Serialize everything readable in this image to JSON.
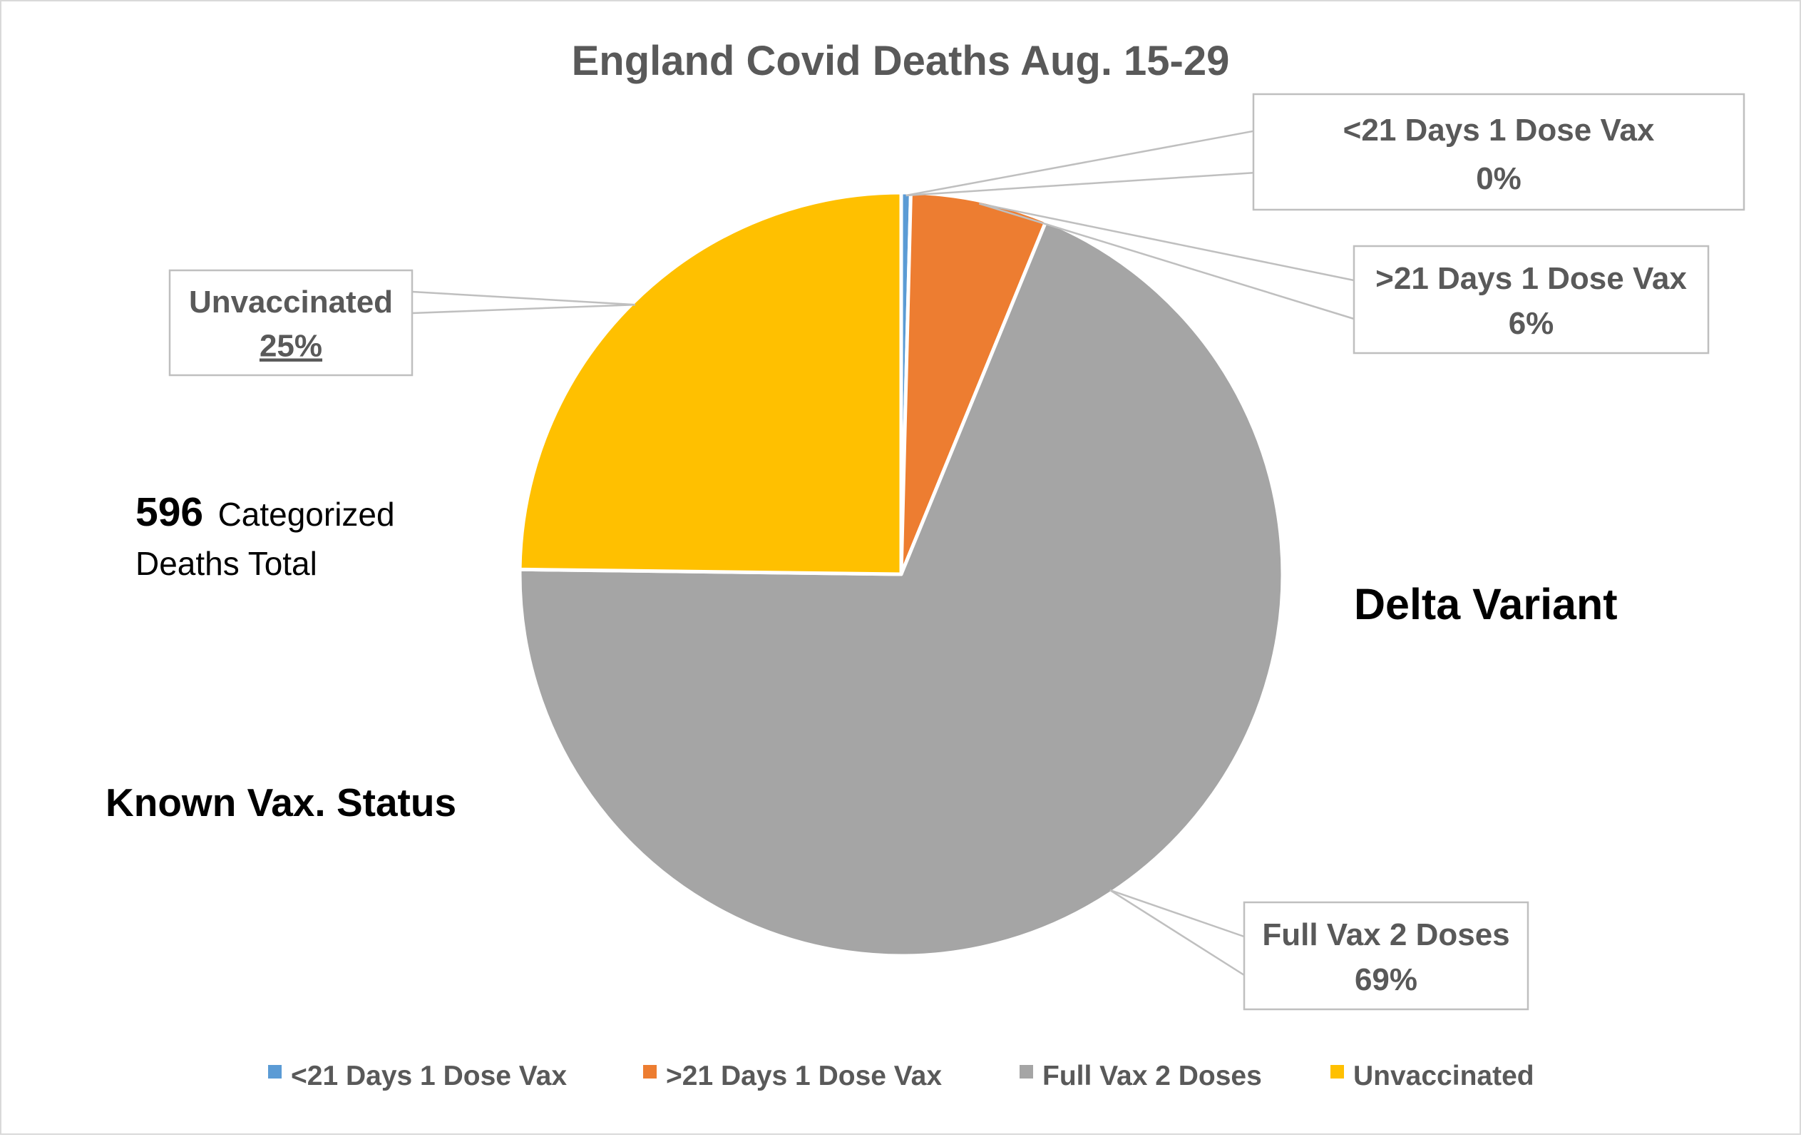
{
  "chart_data": {
    "type": "pie",
    "title": "England Covid Deaths Aug. 15-29",
    "categories": [
      "<21 Days 1 Dose Vax",
      ">21 Days 1 Dose Vax",
      "Full Vax 2 Doses",
      "Unvaccinated"
    ],
    "values": [
      0.4,
      5.8,
      69.0,
      24.8
    ],
    "colors": [
      "#5B9BD5",
      "#ED7D31",
      "#A5A5A5",
      "#FFC000"
    ],
    "data_labels": [
      "0%",
      "6%",
      "69%",
      "25%"
    ],
    "legend_position": "bottom",
    "annotations": {
      "total_count": "596",
      "total_line1": "Categorized",
      "total_line2": "Deaths Total",
      "variant": "Delta Variant",
      "status": "Known Vax. Status"
    }
  }
}
